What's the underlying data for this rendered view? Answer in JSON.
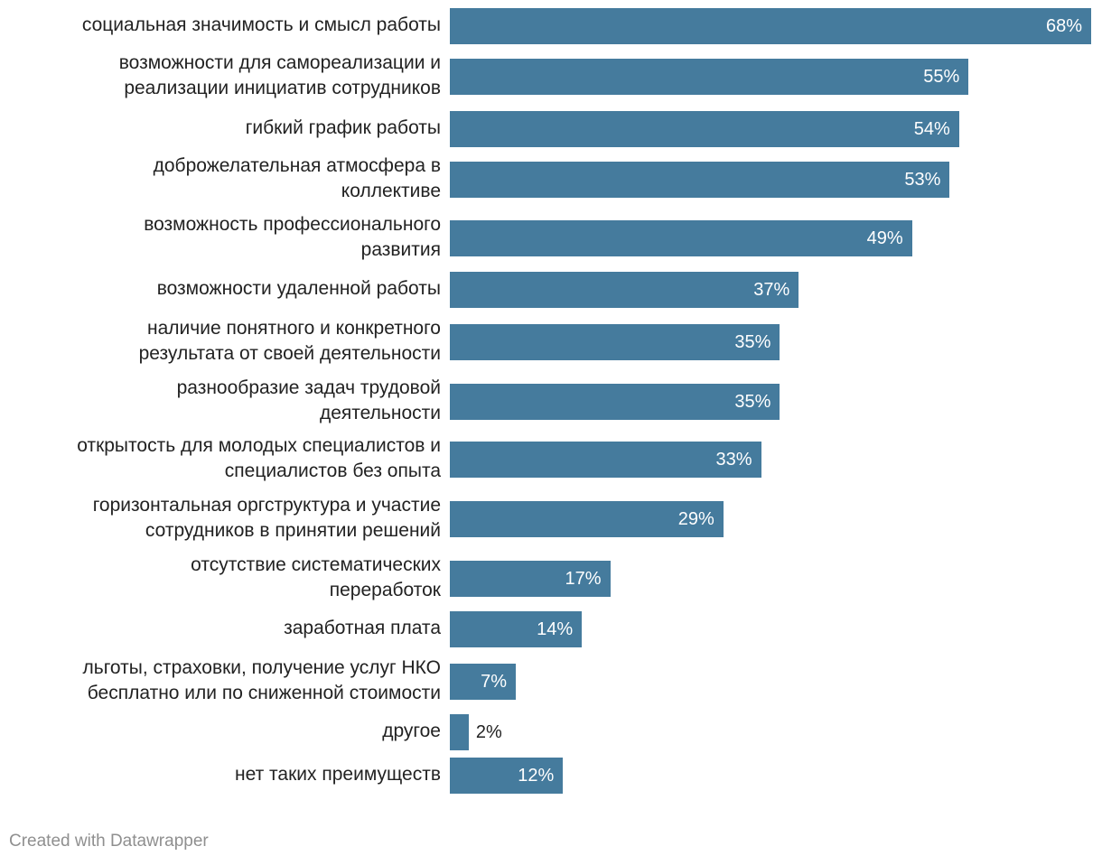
{
  "chart_data": {
    "type": "bar",
    "orientation": "horizontal",
    "bar_color": "#457B9D",
    "value_suffix": "%",
    "categories": [
      [
        "социальная значимость и смысл работы"
      ],
      [
        "возможности для самореализации и",
        "реализации инициатив сотрудников"
      ],
      [
        "гибкий график работы"
      ],
      [
        "доброжелательная атмосфера в",
        "коллективе"
      ],
      [
        "возможность профессионального",
        "развития"
      ],
      [
        "возможности удаленной работы"
      ],
      [
        "наличие понятного и конкретного",
        "результата от своей деятельности"
      ],
      [
        "разнообразие задач трудовой",
        "деятельности"
      ],
      [
        "открытость для молодых специалистов и",
        "специалистов без опыта"
      ],
      [
        "горизонтальная оргструктура и участие",
        "сотрудников в принятии решений"
      ],
      [
        "отсутствие систематических",
        "переработок"
      ],
      [
        "заработная плата"
      ],
      [
        "льготы, страховки, получение услуг НКО",
        "бесплатно или по сниженной стоимости"
      ],
      [
        "другое"
      ],
      [
        "нет таких преимуществ"
      ]
    ],
    "values": [
      68,
      55,
      54,
      53,
      49,
      37,
      35,
      35,
      33,
      29,
      17,
      14,
      7,
      2,
      12
    ],
    "xlim": [
      0,
      68
    ]
  },
  "footer": {
    "credit": "Created with Datawrapper"
  }
}
